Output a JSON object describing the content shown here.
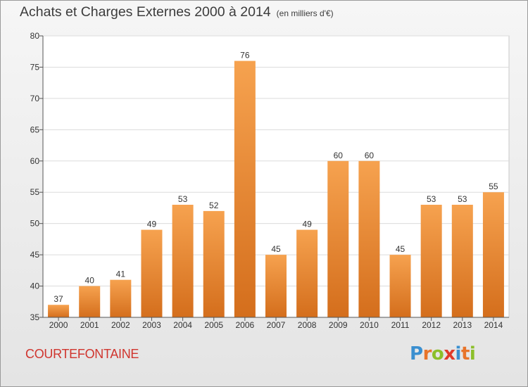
{
  "header": {
    "title": "Achats et Charges Externes 2000 à 2014",
    "unit": "(en milliers d'€)"
  },
  "footer": {
    "commune": "COURTEFONTAINE",
    "logo_text": "Proxiti"
  },
  "colors": {
    "bar_top": "#f6a24f",
    "bar_bottom": "#d46e1c",
    "commune_text": "#d0352e",
    "logo_letters": [
      "#3a8fd0",
      "#e8742a",
      "#8cbf2a",
      "#e03a2a",
      "#3a8fd0",
      "#e8742a",
      "#8cbf2a"
    ]
  },
  "chart_data": {
    "type": "bar",
    "title": "Achats et Charges Externes 2000 à 2014",
    "subtitle": "(en milliers d'€)",
    "categories": [
      "2000",
      "2001",
      "2002",
      "2003",
      "2004",
      "2005",
      "2006",
      "2007",
      "2008",
      "2009",
      "2010",
      "2011",
      "2012",
      "2013",
      "2014"
    ],
    "values": [
      37,
      40,
      41,
      49,
      53,
      52,
      76,
      45,
      49,
      60,
      60,
      45,
      53,
      53,
      55
    ],
    "ylim": [
      35,
      80
    ],
    "yticks": [
      35,
      40,
      45,
      50,
      55,
      60,
      65,
      70,
      75,
      80
    ],
    "grid": true,
    "data_labels": true
  }
}
